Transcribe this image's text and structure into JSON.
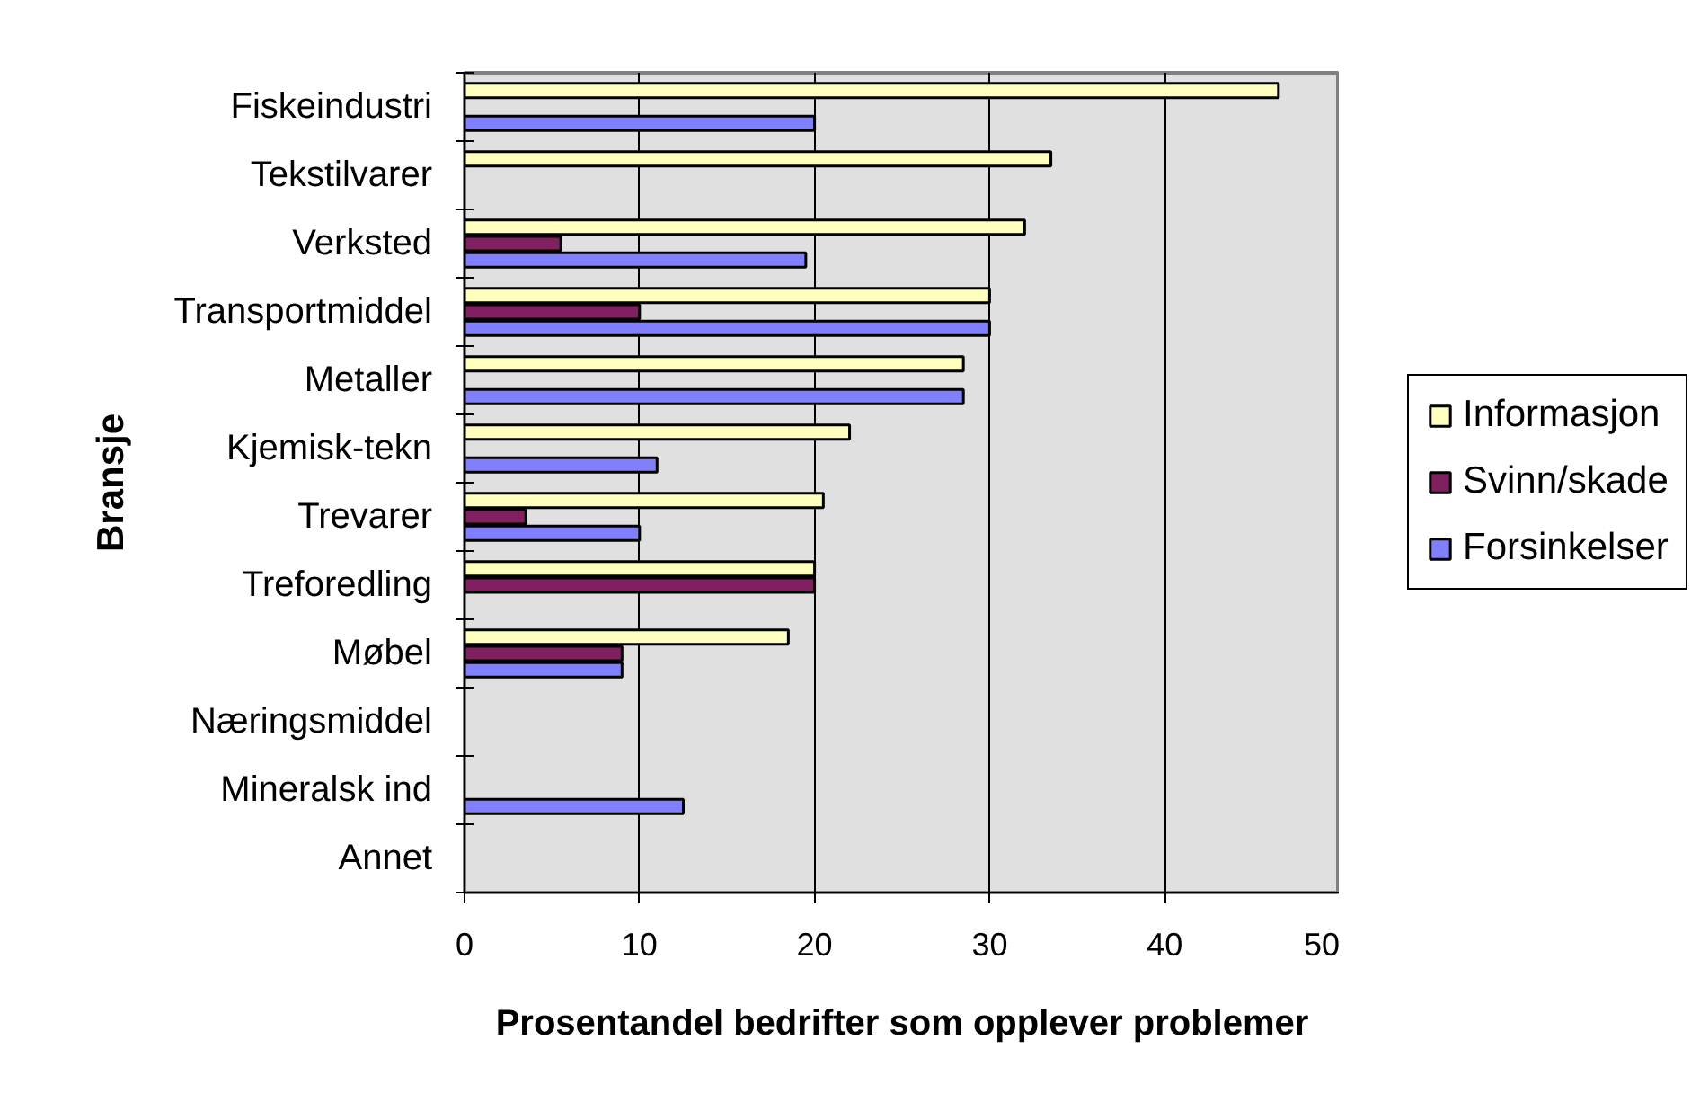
{
  "chart_data": {
    "type": "bar",
    "orientation": "horizontal",
    "categories": [
      "Fiskeindustri",
      "Tekstilvarer",
      "Verksted",
      "Transportmiddel",
      "Metaller",
      "Kjemisk-tekn",
      "Trevarer",
      "Treforedling",
      "Møbel",
      "Næringsmiddel",
      "Mineralsk ind",
      "Annet"
    ],
    "series": [
      {
        "name": "Informasjon",
        "color": "#ffffc0",
        "values": [
          46.5,
          33.5,
          32,
          30,
          28.5,
          22,
          20.5,
          20,
          18.5,
          null,
          null,
          null
        ]
      },
      {
        "name": "Svinn/skade",
        "color": "#802060",
        "values": [
          null,
          null,
          5.5,
          10,
          null,
          null,
          3.5,
          20,
          9,
          null,
          null,
          null
        ]
      },
      {
        "name": "Forsinkelser",
        "color": "#8080ff",
        "values": [
          20,
          null,
          19.5,
          30,
          28.5,
          11,
          10,
          null,
          9,
          null,
          12.5,
          null
        ]
      }
    ],
    "xlabel": "Prosentandel bedrifter som opplever problemer",
    "ylabel": "Bransje",
    "xlim": [
      0,
      50
    ],
    "xticks": [
      0,
      10,
      20,
      30,
      40,
      50
    ],
    "grid": "x",
    "legend": "right"
  }
}
